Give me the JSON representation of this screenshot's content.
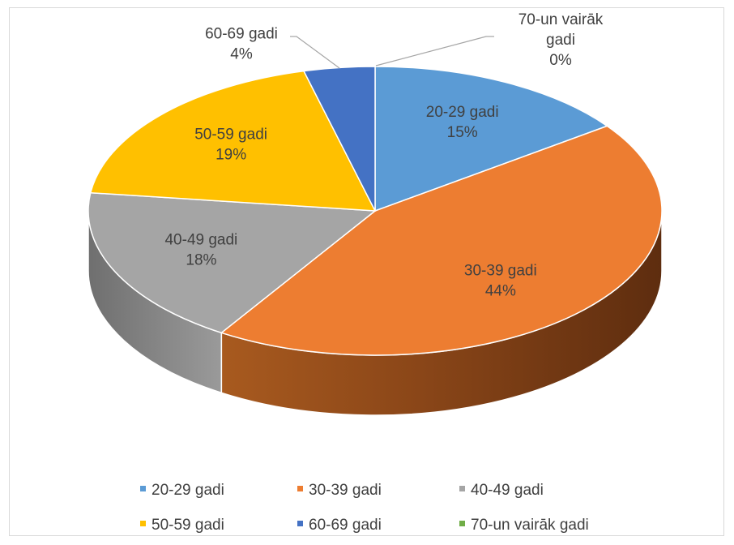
{
  "chart_data": {
    "type": "pie",
    "title": "",
    "categories": [
      "20-29 gadi",
      "30-39 gadi",
      "40-49 gadi",
      "50-59 gadi",
      "60-69 gadi",
      "70-un vairāk gadi"
    ],
    "values": [
      15,
      44,
      18,
      19,
      4,
      0
    ],
    "value_labels": [
      "15%",
      "44%",
      "18%",
      "19%",
      "4%",
      "0%"
    ],
    "label_lines": [
      [
        "20-29 gadi"
      ],
      [
        "30-39 gadi"
      ],
      [
        "40-49 gadi"
      ],
      [
        "50-59 gadi"
      ],
      [
        "60-69 gadi"
      ],
      [
        "70-un vairāk",
        "gadi"
      ]
    ],
    "colors": [
      "#5b9bd5",
      "#ed7d31",
      "#a5a5a5",
      "#ffc000",
      "#4472c4",
      "#70ad47"
    ],
    "legend_position": "bottom",
    "style": "3d-pie"
  }
}
